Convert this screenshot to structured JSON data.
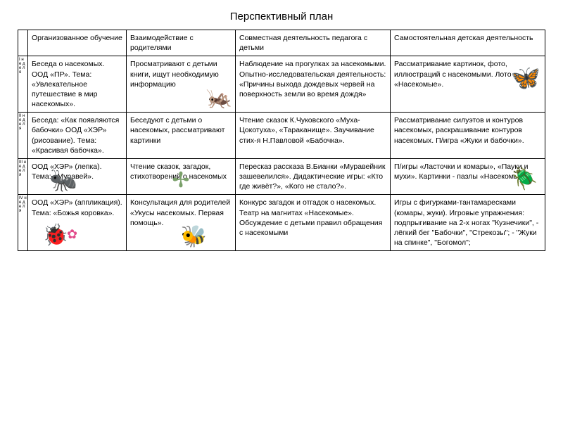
{
  "title": "Перспективный план",
  "headers": {
    "weekCol": "",
    "col1": "Организованное обучение",
    "col2": "Взаимодействие с родителями",
    "col3": "Совместная деятельность педагога с детьми",
    "col4": "Самостоятельная детская деятельность"
  },
  "rows": [
    {
      "week": "I н е д е л я",
      "c1": "Беседа о насекомых. ООД «ПР». Тема: «Увлекательное путешествие в мир насекомых».",
      "c2": "Просматривают с детьми книги, ищут необходимую информацию",
      "c3": "Наблюдение на прогулках за насекомыми.\nОпытно-исследовательская деятельность: «Причины выхода дождевых червей на поверхность земли во время дождя»",
      "c4": "Рассматривание картинок, фото, иллюстраций с насекомыми.\nЛото «Насекомые»."
    },
    {
      "week": "II н е д е л я",
      "c1": "Беседа: «Как появляются бабочки» ООД «ХЭР» (рисование). Тема: «Красивая бабочка».",
      "c2": "Беседуют с детьми о насекомых, рассматривают картинки",
      "c3": "Чтение сказок К.Чуковского «Муха-Цокотуха», «Тараканище».\nЗаучивание стих-я Н.Павловой «Бабочка».",
      "c4": "Рассматривание силуэтов и контуров насекомых, раскрашивание контуров насекомых.\nП/игра «Жуки и бабочки»."
    },
    {
      "week": "III н е д е л я",
      "c1": "ООД «ХЭР» (лепка). Тема: «Муравей».",
      "c2": "Чтение сказок, загадок, стихотворений о насекомых",
      "c3": "Пересказ рассказа В.Бианки «Муравейник зашевелился».\nДидактические игры: «Кто где живёт?», «Кого не стало?».",
      "c4": "П/игры «Ласточки и комары», «Пауки и мухи».\n Картинки - пазлы «Насекомые»."
    },
    {
      "week": "IV н е д е л я",
      "c1": "ООД «ХЭР» (аппликация). Тема: «Божья коровка».",
      "c2": "Консультация для родителей «Укусы насекомых. Первая помощь».",
      "c3": "Конкурс загадок и отгадок о насекомых.\nТеатр на магнитах «Насекомые».\nОбсуждение с детьми правил обращения с насекомыми",
      "c4": "Игры с фигурками-тантамаресками (комары, жуки).\nИгровые упражнения: подпрыгивание на 2-х ногах \"Кузнечики\",\n- лёгкий бег \"Бабочки\", \"Стрекозы\";\n - \"Жуки на спинке\", \"Богомол\";"
    }
  ],
  "icons": {
    "grasshopper": "🦗",
    "butterfly": "🦋",
    "ant": "🐜",
    "dragonfly": "✢",
    "beetle": "🪲",
    "ladybug": "🐞",
    "flower": "✿",
    "bee": "🐝"
  },
  "style": {
    "font_family": "Arial, sans-serif",
    "body_fontsize": 11,
    "title_fontsize": 15,
    "cell_fontsize": 10.5,
    "border_color": "#000000",
    "background": "#ffffff"
  }
}
